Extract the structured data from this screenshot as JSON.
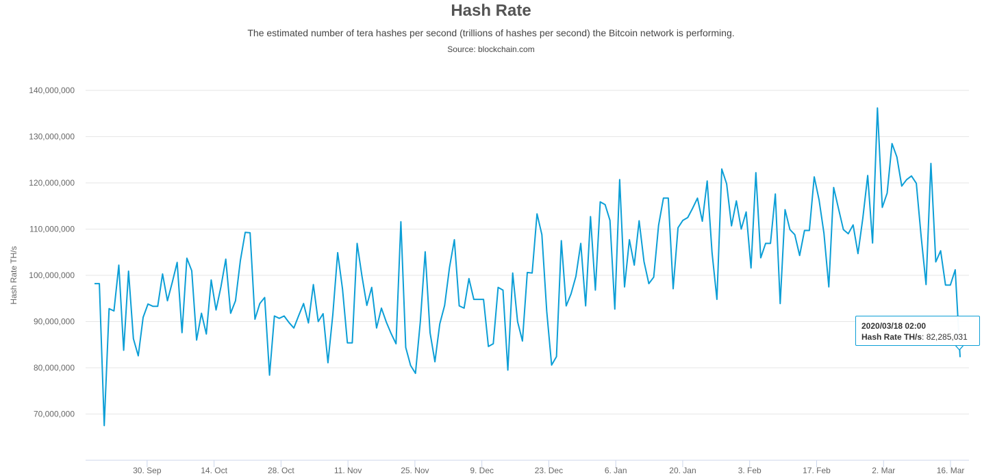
{
  "chart_data": {
    "type": "line",
    "title": "Hash Rate",
    "subtitle": "The estimated number of tera hashes per second (trillions of hashes per second) the Bitcoin network is performing.",
    "source": "Source: blockchain.com",
    "ylabel": "Hash Rate TH/s",
    "xlabel": "",
    "ylim": [
      60000000,
      140000000
    ],
    "y_ticks": [
      {
        "value": 70000000,
        "label": "70,000,000"
      },
      {
        "value": 80000000,
        "label": "80,000,000"
      },
      {
        "value": 90000000,
        "label": "90,000,000"
      },
      {
        "value": 100000000,
        "label": "100,000,000"
      },
      {
        "value": 110000000,
        "label": "110,000,000"
      },
      {
        "value": 120000000,
        "label": "120,000,000"
      },
      {
        "value": 130000000,
        "label": "130,000,000"
      },
      {
        "value": 140000000,
        "label": "140,000,000"
      }
    ],
    "x_start_date": "2019-09-19",
    "x_end_date": "2020-03-18",
    "x_ticks": [
      {
        "date": "2019-09-30",
        "label": "30. Sep"
      },
      {
        "date": "2019-10-14",
        "label": "14. Oct"
      },
      {
        "date": "2019-10-28",
        "label": "28. Oct"
      },
      {
        "date": "2019-11-11",
        "label": "11. Nov"
      },
      {
        "date": "2019-11-25",
        "label": "25. Nov"
      },
      {
        "date": "2019-12-09",
        "label": "9. Dec"
      },
      {
        "date": "2019-12-23",
        "label": "23. Dec"
      },
      {
        "date": "2020-01-06",
        "label": "6. Jan"
      },
      {
        "date": "2020-01-20",
        "label": "20. Jan"
      },
      {
        "date": "2020-02-03",
        "label": "3. Feb"
      },
      {
        "date": "2020-02-17",
        "label": "17. Feb"
      },
      {
        "date": "2020-03-02",
        "label": "2. Mar"
      },
      {
        "date": "2020-03-16",
        "label": "16. Mar"
      }
    ],
    "grid": true,
    "legend": "none",
    "line_color": "#0b9ed6",
    "values": [
      98200000,
      98200000,
      67500000,
      92800000,
      92300000,
      102200000,
      83800000,
      100900000,
      86300000,
      82600000,
      90900000,
      93800000,
      93300000,
      93300000,
      100300000,
      94500000,
      98500000,
      102800000,
      87600000,
      103700000,
      101000000,
      86000000,
      91800000,
      87300000,
      99000000,
      92500000,
      97500000,
      103500000,
      91800000,
      94500000,
      103200000,
      109300000,
      109200000,
      90500000,
      93900000,
      95200000,
      78400000,
      91200000,
      90700000,
      91200000,
      89800000,
      88600000,
      91300000,
      93900000,
      89700000,
      98000000,
      90000000,
      91700000,
      81100000,
      91500000,
      104900000,
      97000000,
      85400000,
      85400000,
      106900000,
      99800000,
      93500000,
      97400000,
      88600000,
      92900000,
      89900000,
      87400000,
      85200000,
      111600000,
      84400000,
      80500000,
      78800000,
      90000000,
      105100000,
      87600000,
      81300000,
      89500000,
      93500000,
      101700000,
      107700000,
      93400000,
      92900000,
      99300000,
      94800000,
      94800000,
      94800000,
      84600000,
      85200000,
      97400000,
      96800000,
      79500000,
      100500000,
      90000000,
      85800000,
      100600000,
      100500000,
      113300000,
      108800000,
      92200000,
      80600000,
      82400000,
      107500000,
      93400000,
      96000000,
      99800000,
      106900000,
      93400000,
      112700000,
      96800000,
      115900000,
      115300000,
      111900000,
      92700000,
      120700000,
      97500000,
      107700000,
      102200000,
      111800000,
      103000000,
      98200000,
      99600000,
      110800000,
      116700000,
      116700000,
      97100000,
      110300000,
      111900000,
      112500000,
      114500000,
      116700000,
      111700000,
      120400000,
      104900000,
      94800000,
      123000000,
      119800000,
      110700000,
      116100000,
      110000000,
      113700000,
      101600000,
      122200000,
      103800000,
      106900000,
      106900000,
      117600000,
      93900000,
      114200000,
      109900000,
      108800000,
      104300000,
      109700000,
      109700000,
      121300000,
      116300000,
      109100000,
      97500000,
      119000000,
      114400000,
      109900000,
      109000000,
      110900000,
      104700000,
      112400000,
      121600000,
      107000000,
      136200000,
      114700000,
      117800000,
      128500000,
      125600000,
      119300000,
      120700000,
      121500000,
      119900000,
      108300000,
      98000000,
      124200000,
      102900000,
      105300000,
      97900000,
      97900000,
      101200000,
      82300000
    ],
    "tooltip": {
      "date": "2020/03/18 02:00",
      "series_label": "Hash Rate TH/s",
      "value": "82,285,031"
    }
  }
}
